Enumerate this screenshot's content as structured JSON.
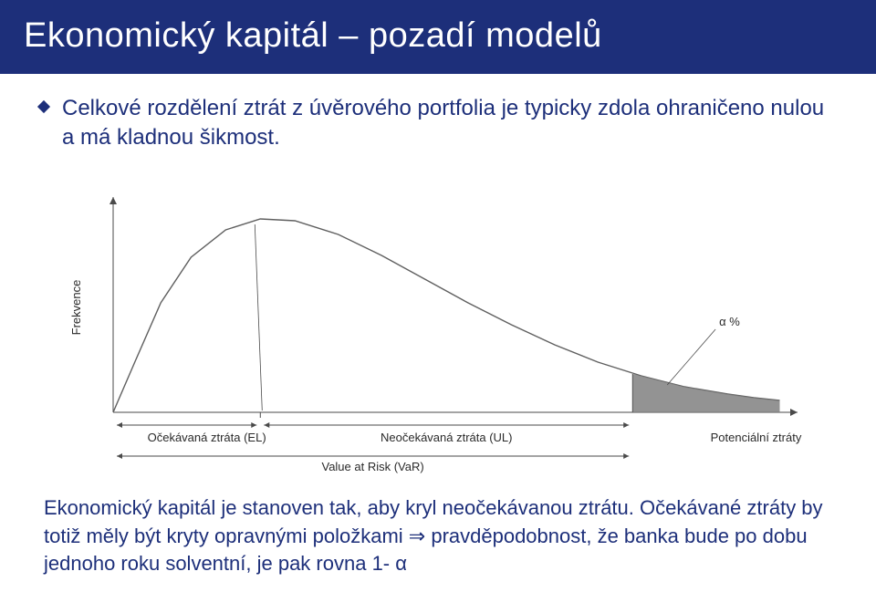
{
  "title": "Ekonomický kapitál – pozadí modelů",
  "bullet": "Celkové rozdělení ztrát z úvěrového portfolia je typicky zdola ohraničeno nulou a má kladnou šikmost.",
  "caption_part1": "Ekonomický kapitál je stanoven tak, aby kryl neočekávanou ztrátu. Očekávané ztráty by totiž měly být kryty opravnými položkami ",
  "caption_arrow": "⇒",
  "caption_part2": " pravděpodobnost, že banka bude po dobu jednoho roku solventní, je pak rovna 1- α",
  "chart": {
    "type": "density-curve",
    "background_color": "#ffffff",
    "axis_color": "#4a4a4a",
    "curve_color": "#5f5f5f",
    "curve_width": 1.4,
    "tail_fill": "#808080",
    "annotation_color": "#2a2a2a",
    "label_fontsize": 13,
    "ylabel": "Frekvence",
    "ylabel_rotation": -90,
    "x_range": [
      0,
      780
    ],
    "y_range": [
      0,
      230
    ],
    "curve_points": [
      [
        0,
        0
      ],
      [
        25,
        55
      ],
      [
        55,
        120
      ],
      [
        90,
        170
      ],
      [
        130,
        200
      ],
      [
        170,
        212
      ],
      [
        210,
        210
      ],
      [
        260,
        195
      ],
      [
        310,
        172
      ],
      [
        360,
        146
      ],
      [
        410,
        120
      ],
      [
        460,
        96
      ],
      [
        510,
        74
      ],
      [
        560,
        55
      ],
      [
        610,
        40
      ],
      [
        660,
        28
      ],
      [
        710,
        20
      ],
      [
        740,
        16
      ],
      [
        770,
        13
      ]
    ],
    "el_marker_x": 170,
    "var_marker_x": 600,
    "tail_start_x": 600,
    "tail_top_y": 42,
    "alpha_label": "α %",
    "bottom_labels": {
      "el": "Očekávaná ztráta (EL)",
      "ul": "Neočekávaná ztráta (UL)",
      "pot": "Potenciální ztráty",
      "var": "Value at Risk (VaR)"
    },
    "colors": {
      "title_bg": "#1d2f7a",
      "title_fg": "#ffffff",
      "body_text": "#1d2f7a"
    }
  }
}
